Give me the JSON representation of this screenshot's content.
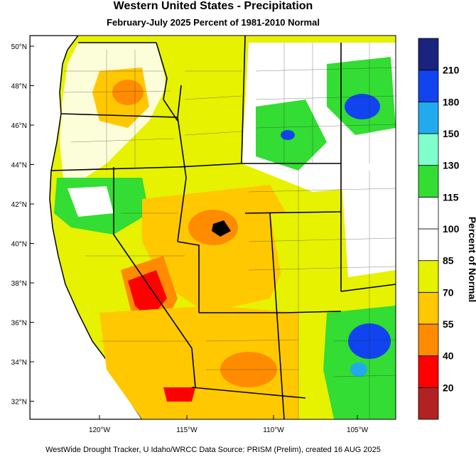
{
  "title": "Western United States - Precipitation",
  "subtitle": "February-July 2025  Percent of 1981-2010 Normal",
  "footer": "WestWide Drought Tracker, U Idaho/WRCC Data Source: PRISM (Prelim), created 16 AUG 2025",
  "legend": {
    "title": "Percent of Normal",
    "bins": [
      {
        "color": "#b22222"
      },
      {
        "color": "#ff0000"
      },
      {
        "color": "#ff8c00"
      },
      {
        "color": "#ffc800"
      },
      {
        "color": "#e6f200"
      },
      {
        "color": "#ffffff"
      },
      {
        "color": "#ffffff"
      },
      {
        "color": "#33dd33"
      },
      {
        "color": "#80ffcc"
      },
      {
        "color": "#22aaee"
      },
      {
        "color": "#1144ee"
      },
      {
        "color": "#1a237e"
      }
    ],
    "labels": [
      "20",
      "40",
      "55",
      "70",
      "85",
      "100",
      "115",
      "130",
      "150",
      "180",
      "210"
    ]
  },
  "axes": {
    "lat_labels": [
      "50°N",
      "48°N",
      "46°N",
      "44°N",
      "42°N",
      "40°N",
      "38°N",
      "36°N",
      "34°N",
      "32°N"
    ],
    "lon_labels": [
      "120°W",
      "115°W",
      "110°W",
      "105°W"
    ]
  },
  "regions": [
    {
      "name": "washington-oregon-west",
      "color": "#ffffff"
    },
    {
      "name": "inland-northwest",
      "color": "#ffc800"
    },
    {
      "name": "montana-east",
      "color": "#33dd33"
    },
    {
      "name": "great-basin",
      "color": "#ffc800"
    },
    {
      "name": "southern-nevada",
      "color": "#ff0000"
    },
    {
      "name": "new-mexico-east",
      "color": "#1144ee"
    }
  ]
}
